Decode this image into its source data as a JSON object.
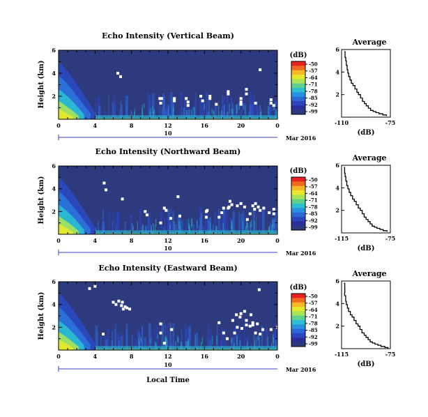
{
  "figure": {
    "xlabel": "Local Time",
    "date_label": "10",
    "x_unit_label": "Mar 2016"
  },
  "colorbar": {
    "unit": "(dB)",
    "ticks": [
      "-50",
      "-57",
      "-64",
      "-71",
      "-78",
      "-85",
      "-92",
      "-99"
    ],
    "colors": [
      "#e8231f",
      "#f26a20",
      "#f6b824",
      "#e8e82a",
      "#a8e35a",
      "#5fd08e",
      "#2bbfd0",
      "#2793e0",
      "#2c67d6",
      "#2d44c0",
      "#2c2f9a",
      "#2e3a7e"
    ]
  },
  "chart_data": [
    {
      "type": "heatmap",
      "title": "Echo Intensity (Vertical Beam)",
      "ylabel": "Height (km)",
      "x_range": [
        0,
        24
      ],
      "y_range": [
        0,
        6
      ],
      "x_ticks": [
        "0",
        "4",
        "8",
        "12",
        "16",
        "20",
        "0"
      ],
      "y_ticks": [
        "6",
        "4",
        "2"
      ],
      "color_range_db": [
        -99,
        -50
      ],
      "x_unit_label": "Mar 2016",
      "gaps": [
        [
          6.5,
          4.0
        ],
        [
          6.8,
          3.7
        ],
        [
          11.1,
          1.8
        ],
        [
          11.3,
          1.8
        ],
        [
          11.2,
          1.4
        ],
        [
          12.7,
          1.8
        ],
        [
          12.7,
          1.6
        ],
        [
          14.0,
          1.8
        ],
        [
          14.2,
          1.2
        ],
        [
          15.6,
          2.0
        ],
        [
          15.8,
          1.6
        ],
        [
          16.6,
          1.8
        ],
        [
          18.6,
          2.2
        ],
        [
          20.0,
          1.8
        ],
        [
          20.0,
          1.3
        ],
        [
          20.6,
          2.2
        ],
        [
          21.6,
          1.4
        ],
        [
          23.3,
          1.4
        ],
        [
          23.6,
          1.2
        ],
        [
          20.6,
          2.6
        ],
        [
          14.2,
          1.5
        ],
        [
          22.1,
          4.3
        ],
        [
          18.6,
          2.4
        ],
        [
          17.3,
          1.3
        ],
        [
          20.0,
          1.5
        ],
        [
          23.3,
          1.7
        ],
        [
          16.6,
          2.0
        ]
      ]
    },
    {
      "type": "line",
      "title": "Average",
      "xlabel": "(dB)",
      "xlim": [
        -110,
        -75
      ],
      "ylim": [
        0,
        6
      ],
      "x_ticks": [
        "-110",
        "-75"
      ],
      "y_ticks": [
        "6",
        "4",
        "2"
      ],
      "x": [
        -108.0,
        -107.5,
        -107.0,
        -106.6,
        -106.0,
        -105.5,
        -104.9,
        -104.0,
        -103.0,
        -101.8,
        -100.4,
        -99.0,
        -97.9,
        -96.4,
        -95.0,
        -93.6,
        -92.3,
        -90.8,
        -89.2,
        -87.3,
        -85.4,
        -83.1,
        -80.4,
        -77.8
      ],
      "y": [
        5.8,
        5.3,
        5.0,
        4.6,
        4.2,
        3.9,
        3.6,
        3.3,
        3.0,
        2.8,
        2.5,
        2.2,
        2.0,
        1.7,
        1.4,
        1.2,
        1.0,
        0.8,
        0.6,
        0.5,
        0.4,
        0.3,
        0.2,
        0.1
      ]
    },
    {
      "type": "heatmap",
      "title": "Echo Intensity (Northward Beam)",
      "ylabel": "Height (km)",
      "x_range": [
        0,
        24
      ],
      "y_range": [
        0,
        6
      ],
      "x_ticks": [
        "0",
        "4",
        "8",
        "12",
        "16",
        "20",
        "0"
      ],
      "y_ticks": [
        "6",
        "4",
        "2"
      ],
      "color_range_db": [
        -99,
        -50
      ],
      "x_unit_label": "Mar 2016",
      "gaps": [
        [
          5.0,
          4.5
        ],
        [
          5.2,
          3.9
        ],
        [
          7.0,
          3.1
        ],
        [
          9.5,
          2.0
        ],
        [
          9.7,
          1.7
        ],
        [
          11.2,
          1.0
        ],
        [
          11.6,
          2.3
        ],
        [
          11.8,
          2.1
        ],
        [
          12.3,
          1.4
        ],
        [
          13.1,
          3.3
        ],
        [
          13.3,
          1.6
        ],
        [
          16.3,
          2.1
        ],
        [
          16.2,
          1.5
        ],
        [
          17.6,
          1.5
        ],
        [
          17.9,
          1.9
        ],
        [
          18.1,
          2.3
        ],
        [
          18.7,
          2.4
        ],
        [
          19.0,
          2.6
        ],
        [
          19.6,
          2.5
        ],
        [
          20.0,
          2.7
        ],
        [
          20.4,
          2.4
        ],
        [
          21.0,
          1.8
        ],
        [
          21.3,
          2.5
        ],
        [
          21.6,
          2.7
        ],
        [
          21.9,
          2.4
        ],
        [
          22.1,
          2.1
        ],
        [
          22.5,
          2.3
        ],
        [
          23.1,
          1.9
        ],
        [
          23.6,
          2.2
        ],
        [
          21.5,
          2.2
        ],
        [
          18.8,
          2.9
        ],
        [
          23.6,
          1.8
        ],
        [
          18.6,
          2.3
        ],
        [
          20.7,
          1.3
        ],
        [
          16.2,
          2.0
        ]
      ]
    },
    {
      "type": "line",
      "title": "Average",
      "xlabel": "(dB)",
      "xlim": [
        -115,
        -75
      ],
      "ylim": [
        0,
        6
      ],
      "x_ticks": [
        "-115",
        "-75"
      ],
      "y_ticks": [
        "6",
        "4",
        "2"
      ],
      "x": [
        -113.0,
        -112.5,
        -112.1,
        -111.5,
        -110.7,
        -109.8,
        -108.8,
        -107.5,
        -106.0,
        -104.6,
        -103.0,
        -101.3,
        -99.7,
        -98.1,
        -96.5,
        -94.9,
        -93.3,
        -91.6,
        -90.0,
        -88.1,
        -86.0,
        -83.5,
        -80.9,
        -77.8
      ],
      "y": [
        5.8,
        5.3,
        5.0,
        4.6,
        4.2,
        3.9,
        3.6,
        3.3,
        3.0,
        2.8,
        2.5,
        2.2,
        2.0,
        1.7,
        1.4,
        1.2,
        1.0,
        0.8,
        0.6,
        0.5,
        0.4,
        0.3,
        0.2,
        0.1
      ]
    },
    {
      "type": "heatmap",
      "title": "Echo Intensity (Eastward Beam)",
      "ylabel": "Height (km)",
      "x_range": [
        0,
        24
      ],
      "y_range": [
        0,
        6
      ],
      "x_ticks": [
        "0",
        "4",
        "8",
        "12",
        "16",
        "20",
        "0"
      ],
      "y_ticks": [
        "6",
        "4",
        "2"
      ],
      "color_range_db": [
        -99,
        -50
      ],
      "x_unit_label": "Mar 2016",
      "gaps": [
        [
          3.4,
          5.4
        ],
        [
          4.0,
          5.6
        ],
        [
          6.0,
          4.2
        ],
        [
          6.3,
          4.0
        ],
        [
          6.6,
          4.3
        ],
        [
          6.9,
          3.9
        ],
        [
          7.0,
          4.2
        ],
        [
          7.3,
          3.8
        ],
        [
          7.5,
          3.7
        ],
        [
          7.8,
          3.6
        ],
        [
          4.9,
          1.4
        ],
        [
          11.2,
          2.3
        ],
        [
          12.4,
          1.8
        ],
        [
          11.2,
          1.5
        ],
        [
          11.6,
          0.6
        ],
        [
          17.6,
          2.4
        ],
        [
          18.1,
          1.5
        ],
        [
          19.1,
          2.6
        ],
        [
          19.3,
          1.5
        ],
        [
          19.6,
          2.0
        ],
        [
          19.9,
          2.9
        ],
        [
          20.1,
          1.9
        ],
        [
          20.4,
          3.4
        ],
        [
          20.6,
          2.6
        ],
        [
          21.0,
          2.1
        ],
        [
          21.3,
          2.4
        ],
        [
          21.6,
          1.5
        ],
        [
          21.8,
          2.3
        ],
        [
          22.1,
          1.4
        ],
        [
          22.4,
          1.8
        ],
        [
          23.3,
          1.8
        ],
        [
          21.1,
          3.1
        ],
        [
          20.0,
          3.2
        ],
        [
          24.0,
          2.0
        ],
        [
          20.6,
          2.2
        ],
        [
          7.1,
          3.6
        ],
        [
          22.0,
          5.3
        ],
        [
          18.5,
          1.0
        ],
        [
          19.5,
          3.1
        ],
        [
          21.3,
          2.2
        ]
      ]
    },
    {
      "type": "line",
      "title": "Average",
      "xlabel": "(dB)",
      "xlim": [
        -115,
        -75
      ],
      "ylim": [
        0,
        6
      ],
      "x_ticks": [
        "-115",
        "-75"
      ],
      "y_ticks": [
        "6",
        "4",
        "2"
      ],
      "x": [
        -113.0,
        -112.4,
        -112.3,
        -112.5,
        -111.6,
        -111.1,
        -110.2,
        -109.3,
        -107.8,
        -106.4,
        -104.8,
        -103.1,
        -101.5,
        -99.9,
        -98.3,
        -96.5,
        -95.0,
        -93.2,
        -91.6,
        -89.8,
        -87.7,
        -85.2,
        -82.7,
        -79.5,
        -77.0
      ],
      "y": [
        5.8,
        5.3,
        5.0,
        4.7,
        4.2,
        3.9,
        3.6,
        3.3,
        3.0,
        2.8,
        2.5,
        2.2,
        2.0,
        1.7,
        1.4,
        1.2,
        1.0,
        0.8,
        0.6,
        0.5,
        0.4,
        0.3,
        0.2,
        0.1,
        0.0
      ]
    }
  ]
}
